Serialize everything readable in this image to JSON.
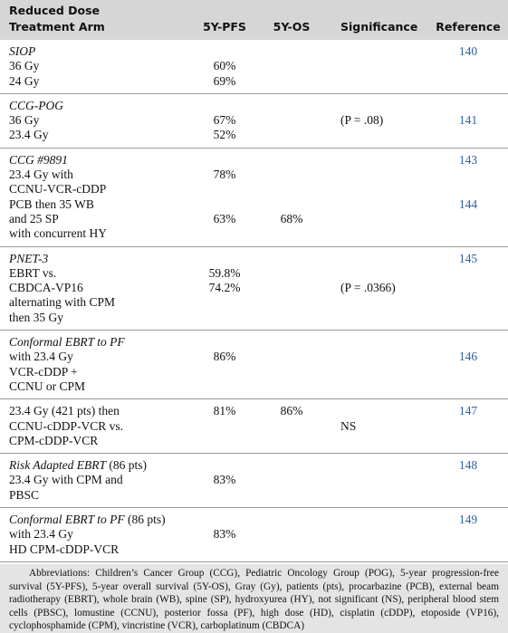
{
  "table": {
    "header": {
      "arm": [
        "Reduced Dose",
        "Treatment Arm"
      ],
      "pfs": "5Y-PFS",
      "os": "5Y-OS",
      "sig": "Significance",
      "ref": "Reference"
    },
    "groups": [
      {
        "lines": [
          {
            "arm": "SIOP",
            "italic": true,
            "ref": "140"
          },
          {
            "arm": "36 Gy",
            "pfs": "60%"
          },
          {
            "arm": "24 Gy",
            "pfs": "69%"
          }
        ]
      },
      {
        "lines": [
          {
            "arm": "CCG-POG",
            "italic": true
          },
          {
            "arm": "36 Gy",
            "pfs": "67%",
            "sig": "(P = .08)",
            "ref": "141"
          },
          {
            "arm": "23.4 Gy",
            "pfs": "52%"
          }
        ]
      },
      {
        "lines": [
          {
            "arm": "CCG #9891",
            "italic": true,
            "ref": "143"
          },
          {
            "arm": "23.4 Gy with",
            "pfs": "78%"
          },
          {
            "arm": "CCNU-VCR-cDDP"
          },
          {
            "arm": "PCB then 35 WB",
            "ref": "144"
          },
          {
            "arm": "and 25 SP",
            "pfs": "63%",
            "os": "68%"
          },
          {
            "arm": "with concurrent HY"
          }
        ]
      },
      {
        "lines": [
          {
            "arm": "PNET-3",
            "italic": true,
            "ref": "145"
          },
          {
            "arm": "EBRT vs.",
            "pfs": "59.8%"
          },
          {
            "arm": "CBDCA-VP16",
            "pfs": "74.2%",
            "sig": "(P = .0366)"
          },
          {
            "arm": "alternating with CPM"
          },
          {
            "arm": "then 35 Gy"
          }
        ]
      },
      {
        "lines": [
          {
            "arm": "Conformal EBRT to PF",
            "italic": true
          },
          {
            "arm": "with 23.4 Gy",
            "pfs": "86%",
            "ref": "146"
          },
          {
            "arm": "VCR-cDDP +"
          },
          {
            "arm": "CCNU or CPM"
          }
        ]
      },
      {
        "lines": [
          {
            "arm": "23.4 Gy (421 pts) then",
            "pfs": "81%",
            "os": "86%",
            "ref": "147"
          },
          {
            "arm": "CCNU-cDDP-VCR vs.",
            "sig": "NS"
          },
          {
            "arm": "CPM-cDDP-VCR"
          }
        ]
      },
      {
        "lines": [
          {
            "arm": "Risk Adapted EBRT",
            "note": "(86 pts)",
            "italic": true,
            "ref": "148"
          },
          {
            "arm": "23.4 Gy with CPM and",
            "pfs": "83%"
          },
          {
            "arm": "PBSC"
          }
        ]
      },
      {
        "lines": [
          {
            "arm": "Conformal EBRT to PF",
            "note": "(86 pts)",
            "italic": true,
            "ref": "149"
          },
          {
            "arm": "with 23.4 Gy",
            "pfs": "83%"
          },
          {
            "arm": "HD CPM-cDDP-VCR"
          }
        ]
      }
    ],
    "footnote": "Abbreviations: Children’s Cancer Group (CCG), Pediatric Oncology Group (POG), 5-year progression-free survival (5Y-PFS), 5-year overall survival (5Y-OS), Gray (Gy), patients (pts), procarbazine (PCB), external beam radiotherapy (EBRT), whole brain (WB), spine (SP), hydroxyurea (HY), not significant (NS), peripheral blood stem cells (PBSC), lomustine (CCNU), posterior fossa (PF), high dose (HD), cisplatin (cDDP), etoposide (VP16), cyclophosphamide (CPM), vincristine (VCR), carboplatinum (CBDCA)"
  }
}
